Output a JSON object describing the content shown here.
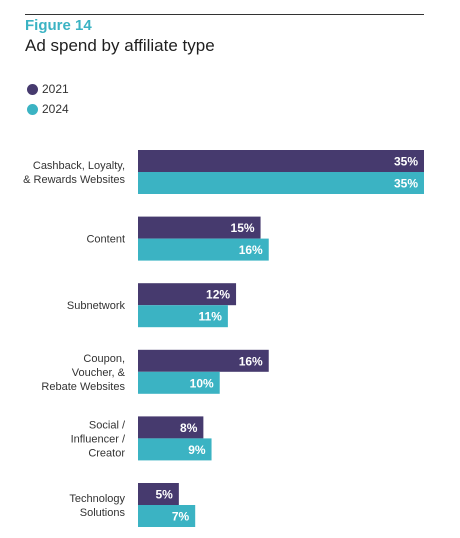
{
  "header": {
    "figure_label": "Figure 14",
    "title": "Ad spend by affiliate type"
  },
  "colors": {
    "2021": "#463a6e",
    "2024": "#3bb3c3",
    "accent": "#3bb3c3"
  },
  "chart_data": {
    "type": "bar",
    "orientation": "horizontal",
    "title": "Ad spend by affiliate type",
    "categories": [
      [
        "Cashback, Loyalty,",
        "& Rewards Websites"
      ],
      [
        "Content"
      ],
      [
        "Subnetwork"
      ],
      [
        "Coupon,",
        "Voucher, &",
        "Rebate Websites"
      ],
      [
        "Social /",
        "Influencer /",
        "Creator"
      ],
      [
        "Technology",
        "Solutions"
      ]
    ],
    "series": [
      {
        "name": "2021",
        "values": [
          35,
          15,
          12,
          16,
          8,
          5
        ],
        "labels": [
          "35%",
          "15%",
          "12%",
          "16%",
          "8%",
          "5%"
        ]
      },
      {
        "name": "2024",
        "values": [
          35,
          16,
          11,
          10,
          9,
          7
        ],
        "labels": [
          "35%",
          "16%",
          "11%",
          "10%",
          "9%",
          "7%"
        ]
      }
    ],
    "xlim": [
      0,
      35
    ],
    "legend": "top-left",
    "grid": false,
    "xlabel": "",
    "ylabel": ""
  }
}
